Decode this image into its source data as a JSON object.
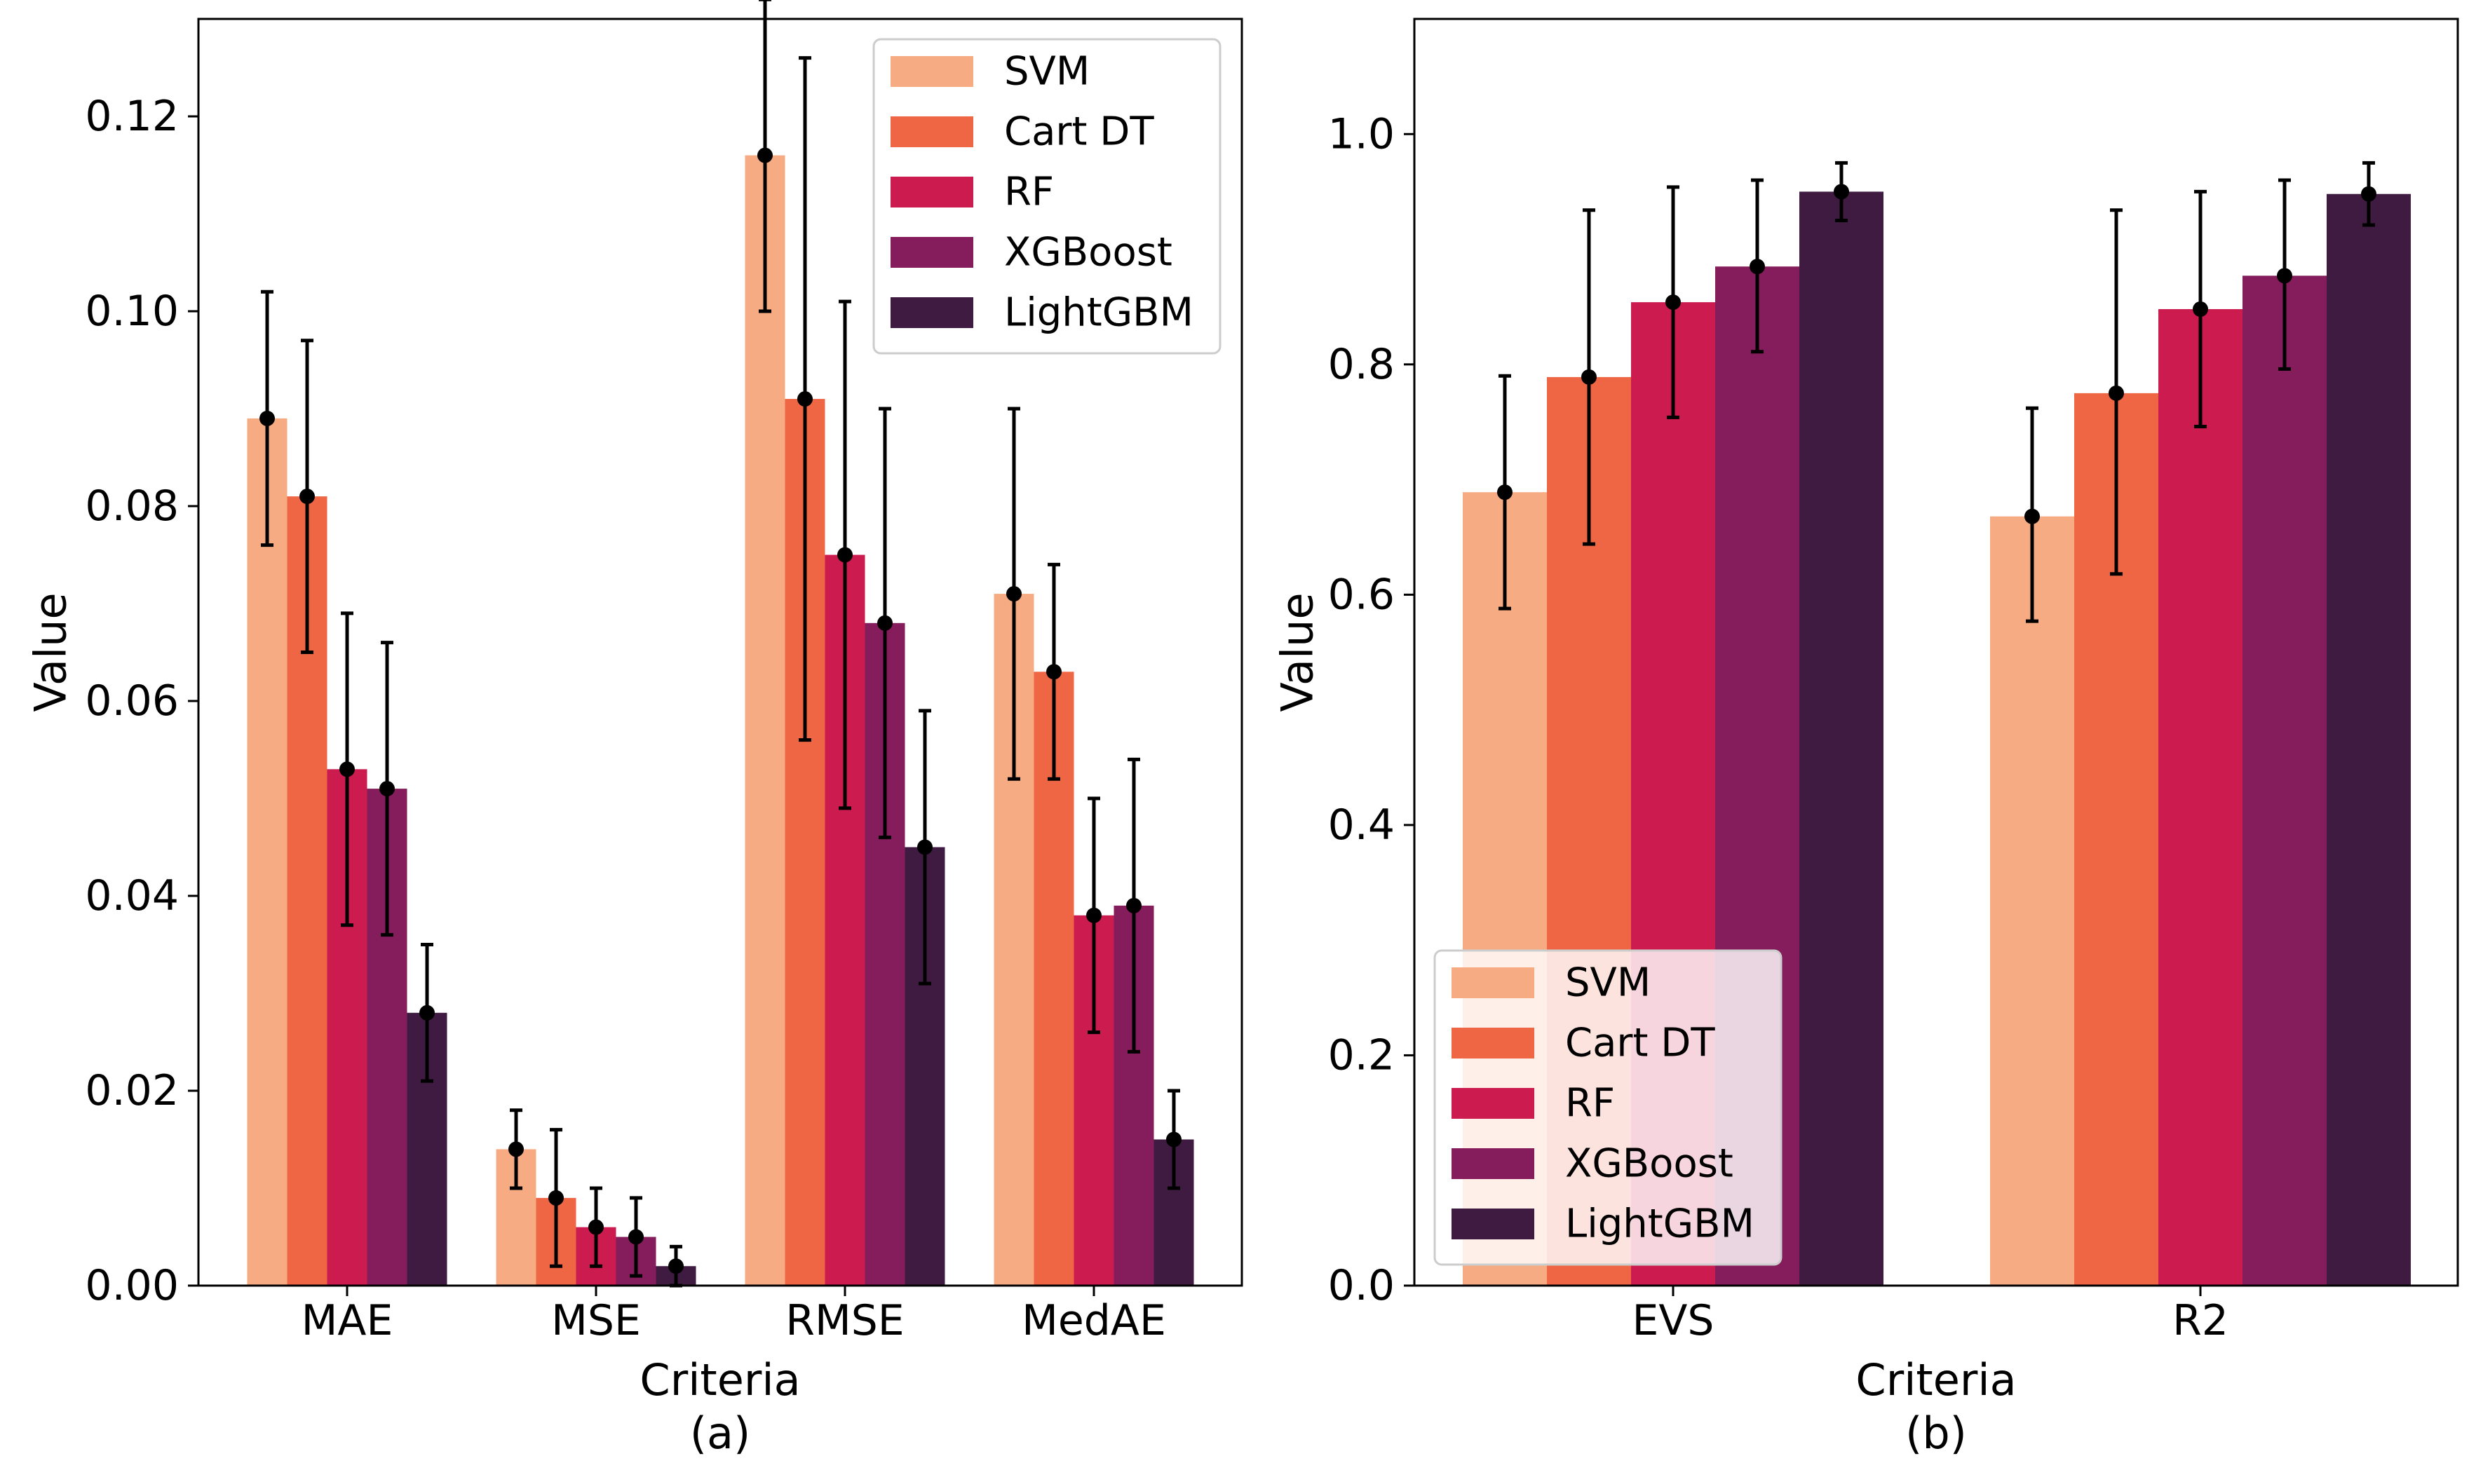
{
  "colors": {
    "SVM": "#f6ab82",
    "Cart DT": "#ef6645",
    "RF": "#cb1b4f",
    "XGBoost": "#851c5b",
    "LightGBM": "#3f1b42"
  },
  "chart_data": [
    {
      "type": "bar",
      "panel_caption": "(a)",
      "xlabel": "Criteria",
      "ylabel": "Value",
      "ylim": [
        0,
        0.13
      ],
      "yticks": [
        0.0,
        0.02,
        0.04,
        0.06,
        0.08,
        0.1,
        0.12
      ],
      "ytick_labels": [
        "0.00",
        "0.02",
        "0.04",
        "0.06",
        "0.08",
        "0.10",
        "0.12"
      ],
      "categories": [
        "MAE",
        "MSE",
        "RMSE",
        "MedAE"
      ],
      "legend_position": "top-right",
      "series": [
        {
          "name": "SVM",
          "values": [
            0.089,
            0.014,
            0.116,
            0.071
          ],
          "err_low": [
            0.076,
            0.01,
            0.1,
            0.052
          ],
          "err_high": [
            0.102,
            0.018,
            0.132,
            0.09
          ]
        },
        {
          "name": "Cart DT",
          "values": [
            0.081,
            0.009,
            0.091,
            0.063
          ],
          "err_low": [
            0.065,
            0.002,
            0.056,
            0.052
          ],
          "err_high": [
            0.097,
            0.016,
            0.126,
            0.074
          ]
        },
        {
          "name": "RF",
          "values": [
            0.053,
            0.006,
            0.075,
            0.038
          ],
          "err_low": [
            0.037,
            0.002,
            0.049,
            0.026
          ],
          "err_high": [
            0.069,
            0.01,
            0.101,
            0.05
          ]
        },
        {
          "name": "XGBoost",
          "values": [
            0.051,
            0.005,
            0.068,
            0.039
          ],
          "err_low": [
            0.036,
            0.001,
            0.046,
            0.024
          ],
          "err_high": [
            0.066,
            0.009,
            0.09,
            0.054
          ]
        },
        {
          "name": "LightGBM",
          "values": [
            0.028,
            0.002,
            0.045,
            0.015
          ],
          "err_low": [
            0.021,
            0.0,
            0.031,
            0.01
          ],
          "err_high": [
            0.035,
            0.004,
            0.059,
            0.02
          ]
        }
      ]
    },
    {
      "type": "bar",
      "panel_caption": "(b)",
      "xlabel": "Criteria",
      "ylabel": "Value",
      "ylim": [
        0,
        1.1
      ],
      "yticks": [
        0.0,
        0.2,
        0.4,
        0.6,
        0.8,
        1.0
      ],
      "ytick_labels": [
        "0.0",
        "0.2",
        "0.4",
        "0.6",
        "0.8",
        "1.0"
      ],
      "categories": [
        "EVS",
        "R2"
      ],
      "legend_position": "bottom-left",
      "series": [
        {
          "name": "SVM",
          "values": [
            0.689,
            0.668
          ],
          "err_low": [
            0.588,
            0.577
          ],
          "err_high": [
            0.79,
            0.762
          ]
        },
        {
          "name": "Cart DT",
          "values": [
            0.789,
            0.775
          ],
          "err_low": [
            0.644,
            0.618
          ],
          "err_high": [
            0.934,
            0.934
          ]
        },
        {
          "name": "RF",
          "values": [
            0.854,
            0.848
          ],
          "err_low": [
            0.754,
            0.746
          ],
          "err_high": [
            0.954,
            0.95
          ]
        },
        {
          "name": "XGBoost",
          "values": [
            0.885,
            0.877
          ],
          "err_low": [
            0.811,
            0.796
          ],
          "err_high": [
            0.96,
            0.96
          ]
        },
        {
          "name": "LightGBM",
          "values": [
            0.95,
            0.948
          ],
          "err_low": [
            0.925,
            0.921
          ],
          "err_high": [
            0.975,
            0.975
          ]
        }
      ]
    }
  ]
}
